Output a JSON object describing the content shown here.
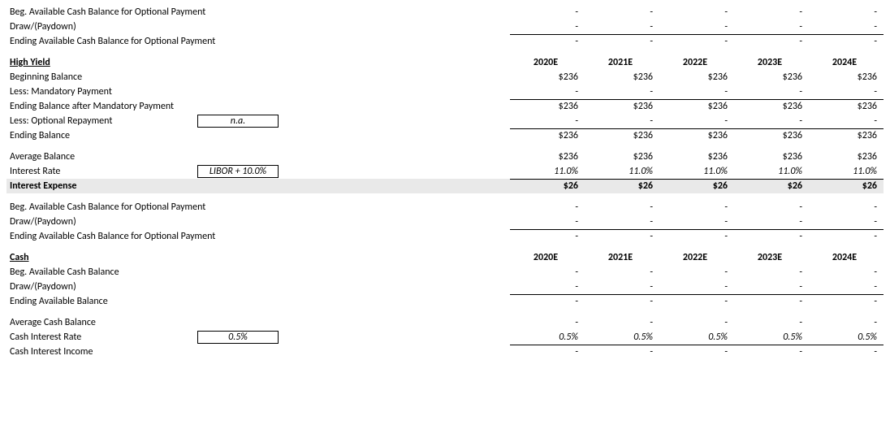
{
  "years": [
    "2020E",
    "2021E",
    "2022E",
    "2023E",
    "2024E"
  ],
  "dash": "-",
  "prev": {
    "beg_label": "Beg. Available Cash Balance for Optional Payment",
    "draw_label": "Draw/(Paydown)",
    "ending_label": "Ending Available Cash Balance for Optional Payment",
    "beg_vals": [
      "-",
      "-",
      "-",
      "-",
      "-"
    ],
    "draw_vals": [
      "-",
      "-",
      "-",
      "-",
      "-"
    ],
    "ending_vals": [
      "-",
      "-",
      "-",
      "-",
      "-"
    ]
  },
  "hy": {
    "title": "High Yield",
    "beg_label": "Beginning Balance",
    "beg_vals": [
      "$236",
      "$236",
      "$236",
      "$236",
      "$236"
    ],
    "mand_label": "Less: Mandatory Payment",
    "mand_vals": [
      "-",
      "-",
      "-",
      "-",
      "-"
    ],
    "after_mand_label": "Ending Balance after Mandatory Payment",
    "after_mand_vals": [
      "$236",
      "$236",
      "$236",
      "$236",
      "$236"
    ],
    "opt_label": "Less: Optional Repayment",
    "opt_input": "n.a.",
    "opt_vals": [
      "-",
      "-",
      "-",
      "-",
      "-"
    ],
    "end_label": "Ending Balance",
    "end_vals": [
      "$236",
      "$236",
      "$236",
      "$236",
      "$236"
    ],
    "avg_label": "Average Balance",
    "avg_vals": [
      "$236",
      "$236",
      "$236",
      "$236",
      "$236"
    ],
    "rate_label": "Interest Rate",
    "rate_input": "LIBOR + 10.0%",
    "rate_vals": [
      "11.0%",
      "11.0%",
      "11.0%",
      "11.0%",
      "11.0%"
    ],
    "exp_label": "Interest Expense",
    "exp_vals": [
      "$26",
      "$26",
      "$26",
      "$26",
      "$26"
    ],
    "cash_beg_label": "Beg. Available Cash Balance for Optional Payment",
    "cash_beg_vals": [
      "-",
      "-",
      "-",
      "-",
      "-"
    ],
    "cash_draw_label": "Draw/(Paydown)",
    "cash_draw_vals": [
      "-",
      "-",
      "-",
      "-",
      "-"
    ],
    "cash_end_label": "Ending Available Cash Balance for Optional Payment",
    "cash_end_vals": [
      "-",
      "-",
      "-",
      "-",
      "-"
    ]
  },
  "cash": {
    "title": "Cash",
    "beg_label": "Beg. Available Cash Balance",
    "beg_vals": [
      "-",
      "-",
      "-",
      "-",
      "-"
    ],
    "draw_label": "Draw/(Paydown)",
    "draw_vals": [
      "-",
      "-",
      "-",
      "-",
      "-"
    ],
    "end_label": "Ending Available Balance",
    "end_vals": [
      "-",
      "-",
      "-",
      "-",
      "-"
    ],
    "avg_label": "Average Cash Balance",
    "avg_vals": [
      "-",
      "-",
      "-",
      "-",
      "-"
    ],
    "rate_label": "Cash Interest Rate",
    "rate_input": "0.5%",
    "rate_vals": [
      "0.5%",
      "0.5%",
      "0.5%",
      "0.5%",
      "0.5%"
    ],
    "inc_label": "Cash Interest Income",
    "inc_vals": [
      "-",
      "-",
      "-",
      "-",
      "-"
    ]
  }
}
